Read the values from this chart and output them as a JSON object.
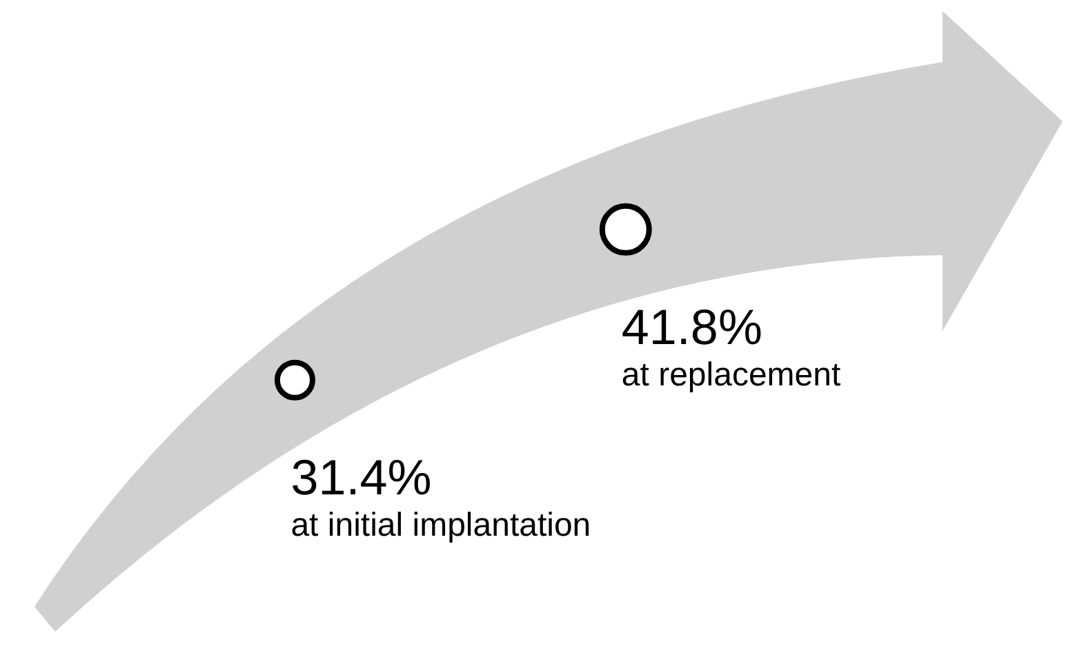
{
  "chart_data": {
    "type": "other",
    "categories": [
      "at initial implantation",
      "at replacement"
    ],
    "values": [
      31.4,
      41.8
    ],
    "value_labels": [
      "31.4%",
      "41.8%"
    ],
    "color": "#000000"
  }
}
